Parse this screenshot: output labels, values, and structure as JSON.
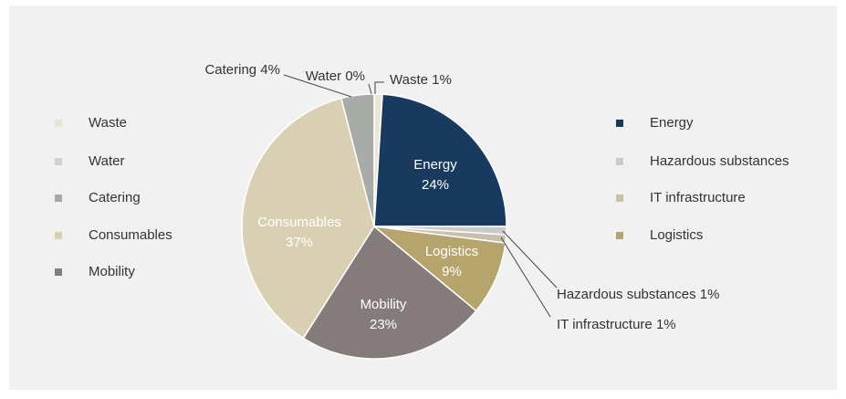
{
  "chart_data": {
    "type": "pie",
    "categories": [
      "Water",
      "Waste",
      "Energy",
      "Hazardous substances",
      "IT infrastructure",
      "Logistics",
      "Mobility",
      "Consumables",
      "Catering"
    ],
    "values": [
      0,
      1,
      24,
      1,
      1,
      9,
      23,
      37,
      4
    ],
    "value_labels": [
      "0%",
      "1%",
      "24%",
      "1%",
      "1%",
      "9%",
      "23%",
      "37%",
      "4%"
    ],
    "colors": [
      "#d6d0c8",
      "#ebe5d5",
      "#173a5e",
      "#cacaca",
      "#c9bfad",
      "#b5a46c",
      "#857b7b",
      "#d9cfb3",
      "#a9aba9"
    ]
  }
}
